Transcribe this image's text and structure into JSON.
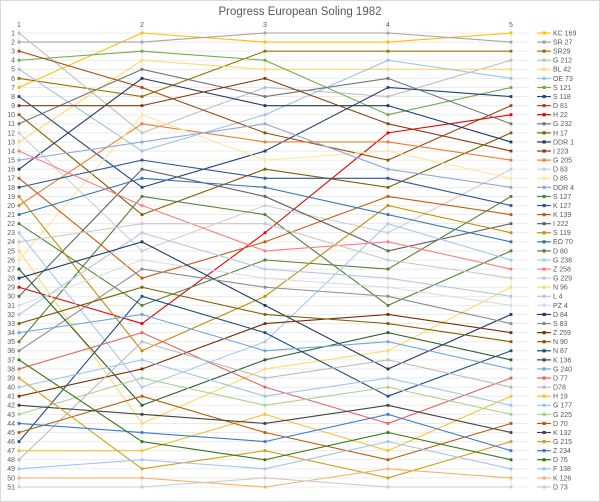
{
  "chart_data": {
    "type": "line",
    "subtype": "bump-rank-progress",
    "title": "Progress European Soling 1982",
    "xlabel": "",
    "ylabel": "",
    "x_tick_labels": [
      "1",
      "2",
      "3",
      "4",
      "5"
    ],
    "x_axis_position": "top",
    "y_axis": {
      "min": 1,
      "max": 51,
      "step": 1,
      "inverted": true,
      "meaning": "ranking position after each race"
    },
    "y_tick_labels": [
      1,
      2,
      3,
      4,
      5,
      6,
      7,
      8,
      9,
      10,
      11,
      12,
      13,
      14,
      15,
      16,
      17,
      18,
      19,
      20,
      21,
      22,
      23,
      24,
      25,
      26,
      27,
      28,
      29,
      30,
      31,
      32,
      33,
      34,
      35,
      36,
      37,
      38,
      39,
      40,
      41,
      42,
      43,
      44,
      45,
      46,
      47,
      48,
      49,
      50,
      51
    ],
    "grid": true,
    "legend_position": "right",
    "series": [
      {
        "name": "KC 169",
        "color": "#FFC000",
        "ranks": [
          7,
          1,
          2,
          2,
          1
        ]
      },
      {
        "name": "SR 27",
        "color": "#A5A5A5",
        "ranks": [
          2,
          2,
          1,
          1,
          2
        ]
      },
      {
        "name": "SR29",
        "color": "#997300",
        "ranks": [
          6,
          8,
          3,
          3,
          3
        ]
      },
      {
        "name": "G 212",
        "color": "#BFBFBF",
        "ranks": [
          1,
          12,
          7,
          8,
          4
        ]
      },
      {
        "name": "BL 42",
        "color": "#FFD966",
        "ranks": [
          13,
          4,
          5,
          5,
          5
        ]
      },
      {
        "name": "OE 73",
        "color": "#9DC3E6",
        "ranks": [
          5,
          14,
          10,
          4,
          6
        ]
      },
      {
        "name": "S 121",
        "color": "#70AD47",
        "ranks": [
          4,
          3,
          4,
          10,
          7
        ]
      },
      {
        "name": "S 118",
        "color": "#264478",
        "ranks": [
          8,
          18,
          14,
          7,
          8
        ]
      },
      {
        "name": "D 81",
        "color": "#9E4A0E",
        "ranks": [
          3,
          7,
          12,
          15,
          9
        ]
      },
      {
        "name": "H 22",
        "color": "#E60000",
        "ranks": [
          29,
          33,
          23,
          12,
          10
        ]
      },
      {
        "name": "G 232",
        "color": "#757575",
        "ranks": [
          11,
          5,
          8,
          6,
          11
        ]
      },
      {
        "name": "H 17",
        "color": "#806000",
        "ranks": [
          10,
          21,
          16,
          18,
          12
        ]
      },
      {
        "name": "DDR 1",
        "color": "#203864",
        "ranks": [
          16,
          6,
          9,
          9,
          13
        ]
      },
      {
        "name": "I 223",
        "color": "#843C0C",
        "ranks": [
          9,
          9,
          6,
          11,
          14
        ]
      },
      {
        "name": "G 205",
        "color": "#ED7D31",
        "ranks": [
          20,
          11,
          13,
          13,
          15
        ]
      },
      {
        "name": "D 83",
        "color": "#D0CECE",
        "ranks": [
          12,
          25,
          20,
          23,
          16
        ]
      },
      {
        "name": "D 85",
        "color": "#FFE699",
        "ranks": [
          26,
          10,
          15,
          14,
          17
        ]
      },
      {
        "name": "DDR 4",
        "color": "#8EAADB",
        "ranks": [
          15,
          13,
          11,
          16,
          18
        ]
      },
      {
        "name": "S 127",
        "color": "#548235",
        "ranks": [
          22,
          31,
          26,
          27,
          19
        ]
      },
      {
        "name": "K 127",
        "color": "#2F5597",
        "ranks": [
          18,
          15,
          17,
          17,
          20
        ]
      },
      {
        "name": "K 139",
        "color": "#C55A11",
        "ranks": [
          17,
          28,
          24,
          19,
          21
        ]
      },
      {
        "name": "I 222",
        "color": "#636363",
        "ranks": [
          30,
          16,
          19,
          25,
          22
        ]
      },
      {
        "name": "S 119",
        "color": "#BF8F00",
        "ranks": [
          19,
          36,
          30,
          20,
          23
        ]
      },
      {
        "name": "EO 70",
        "color": "#2E75B6",
        "ranks": [
          21,
          17,
          18,
          21,
          24
        ]
      },
      {
        "name": "D 80",
        "color": "#538135",
        "ranks": [
          35,
          19,
          21,
          31,
          25
        ]
      },
      {
        "name": "G 238",
        "color": "#A6C9EC",
        "ranks": [
          23,
          40,
          35,
          22,
          26
        ]
      },
      {
        "name": "Z 258",
        "color": "#FF7C80",
        "ranks": [
          14,
          20,
          25,
          24,
          27
        ]
      },
      {
        "name": "G 229",
        "color": "#C9C9C9",
        "ranks": [
          24,
          22,
          22,
          26,
          28
        ]
      },
      {
        "name": "N 96",
        "color": "#FFDA65",
        "ranks": [
          25,
          44,
          38,
          36,
          29
        ]
      },
      {
        "name": "L 4",
        "color": "#B4C7E7",
        "ranks": [
          32,
          23,
          27,
          28,
          30
        ]
      },
      {
        "name": "PZ 4",
        "color": "#D6DCE5",
        "ranks": [
          31,
          26,
          28,
          29,
          31
        ]
      },
      {
        "name": "D 84",
        "color": "#1F3864",
        "ranks": [
          28,
          24,
          31,
          38,
          32
        ]
      },
      {
        "name": "S 83",
        "color": "#8C8C8C",
        "ranks": [
          36,
          27,
          29,
          30,
          33
        ]
      },
      {
        "name": "Z 259",
        "color": "#7B2E00",
        "ranks": [
          41,
          38,
          33,
          32,
          34
        ]
      },
      {
        "name": "N 90",
        "color": "#7F6000",
        "ranks": [
          33,
          29,
          32,
          33,
          35
        ]
      },
      {
        "name": "N 87",
        "color": "#1F4E79",
        "ranks": [
          46,
          30,
          34,
          41,
          36
        ]
      },
      {
        "name": "K 136",
        "color": "#2D5B2D",
        "ranks": [
          27,
          42,
          37,
          34,
          37
        ]
      },
      {
        "name": "G 240",
        "color": "#6FA8DC",
        "ranks": [
          34,
          32,
          36,
          35,
          38
        ]
      },
      {
        "name": "D 77",
        "color": "#E06666",
        "ranks": [
          38,
          34,
          40,
          44,
          39
        ]
      },
      {
        "name": "D78",
        "color": "#BBBBBB",
        "ranks": [
          48,
          35,
          39,
          37,
          40
        ]
      },
      {
        "name": "H 19",
        "color": "#F1C232",
        "ranks": [
          47,
          47,
          43,
          47,
          41
        ]
      },
      {
        "name": "G 177",
        "color": "#9FC5E8",
        "ranks": [
          40,
          37,
          41,
          39,
          42
        ]
      },
      {
        "name": "G 225",
        "color": "#A9D18E",
        "ranks": [
          43,
          39,
          42,
          40,
          43
        ]
      },
      {
        "name": "D 70",
        "color": "#B45F06",
        "ranks": [
          45,
          41,
          45,
          48,
          44
        ]
      },
      {
        "name": "K 132",
        "color": "#434343",
        "ranks": [
          42,
          43,
          44,
          42,
          45
        ]
      },
      {
        "name": "G 215",
        "color": "#D4A017",
        "ranks": [
          39,
          49,
          47,
          50,
          46
        ]
      },
      {
        "name": "Z 234",
        "color": "#3C78D8",
        "ranks": [
          44,
          45,
          46,
          43,
          47
        ]
      },
      {
        "name": "D 76",
        "color": "#38761D",
        "ranks": [
          37,
          46,
          48,
          45,
          48
        ]
      },
      {
        "name": "F 138",
        "color": "#A4C2F4",
        "ranks": [
          49,
          48,
          49,
          46,
          49
        ]
      },
      {
        "name": "K 126",
        "color": "#F6B26B",
        "ranks": [
          50,
          50,
          51,
          49,
          50
        ]
      },
      {
        "name": "D 73",
        "color": "#CCCCCC",
        "ranks": [
          51,
          51,
          50,
          51,
          51
        ]
      }
    ]
  },
  "layout_hints": {
    "races": 5,
    "positions": 51,
    "legend_title": ""
  }
}
